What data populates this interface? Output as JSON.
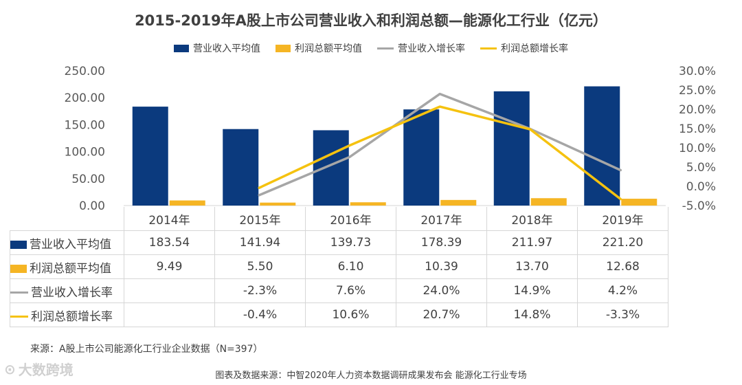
{
  "colors": {
    "revenue_bar": "#0b3a7e",
    "profit_bar": "#f5b524",
    "revenue_growth_line": "#a6a6a6",
    "profit_growth_line": "#f5c20f"
  },
  "legend": {
    "revenue_avg": "营业收入平均值",
    "profit_avg": "利润总额平均值",
    "revenue_growth": "营业收入增长率",
    "profit_growth": "利润总额增长率"
  },
  "table": {
    "years": [
      "2014年",
      "2015年",
      "2016年",
      "2017年",
      "2018年",
      "2019年"
    ],
    "rows": [
      {
        "label": "营业收入平均值",
        "values": [
          "183.54",
          "141.94",
          "139.73",
          "178.39",
          "211.97",
          "221.20"
        ]
      },
      {
        "label": "利润总额平均值",
        "values": [
          "9.49",
          "5.50",
          "6.10",
          "10.39",
          "13.70",
          "12.68"
        ]
      },
      {
        "label": "营业收入增长率",
        "values": [
          "",
          "-2.3%",
          "7.6%",
          "24.0%",
          "14.9%",
          "4.2%"
        ]
      },
      {
        "label": "利润总额增长率",
        "values": [
          "",
          "-0.4%",
          "10.6%",
          "20.7%",
          "14.8%",
          "-3.3%"
        ]
      }
    ]
  },
  "source_note": "来源：A股上市公司能源化工行业企业数据（N=397）",
  "footer_note": "图表及数据来源：中智2020年人力资本数据调研成果发布会 能源化工行业专场",
  "watermark": "大数跨境",
  "chart_data": {
    "type": "bar",
    "title": "2015-2019年A股上市公司营业收入和利润总额—能源化工行业（亿元）",
    "categories": [
      "2014年",
      "2015年",
      "2016年",
      "2017年",
      "2018年",
      "2019年"
    ],
    "series": [
      {
        "name": "营业收入平均值",
        "type": "bar",
        "axis": "left",
        "values": [
          183.54,
          141.94,
          139.73,
          178.39,
          211.97,
          221.2
        ]
      },
      {
        "name": "利润总额平均值",
        "type": "bar",
        "axis": "left",
        "values": [
          9.49,
          5.5,
          6.1,
          10.39,
          13.7,
          12.68
        ]
      },
      {
        "name": "营业收入增长率",
        "type": "line",
        "axis": "right",
        "values": [
          null,
          -2.3,
          7.6,
          24.0,
          14.9,
          4.2
        ]
      },
      {
        "name": "利润总额增长率",
        "type": "line",
        "axis": "right",
        "values": [
          null,
          -0.4,
          10.6,
          20.7,
          14.8,
          -3.3
        ]
      }
    ],
    "ylim_left": [
      0,
      250
    ],
    "yticks_left": [
      "0.00",
      "50.00",
      "100.00",
      "150.00",
      "200.00",
      "250.00"
    ],
    "ylim_right": [
      -5,
      30
    ],
    "yticks_right": [
      "-5.0%",
      "0.0%",
      "5.0%",
      "10.0%",
      "15.0%",
      "20.0%",
      "25.0%",
      "30.0%"
    ],
    "legend_position": "top"
  }
}
